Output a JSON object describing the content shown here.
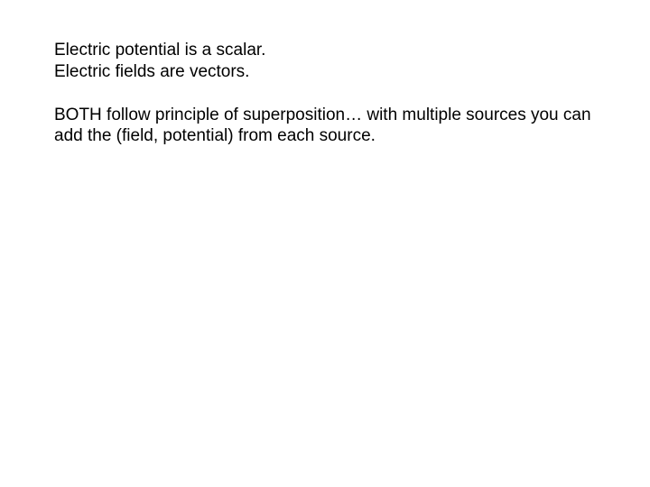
{
  "slide": {
    "background_color": "#ffffff",
    "text_color": "#000000",
    "font_family": "Arial",
    "font_size_pt": 14,
    "line_height": 1.25,
    "block1": {
      "line1": "Electric potential is a scalar.",
      "line2": "Electric fields are vectors."
    },
    "block2": {
      "text": "BOTH follow principle of superposition… with multiple sources you can add the (field, potential) from each source."
    }
  }
}
